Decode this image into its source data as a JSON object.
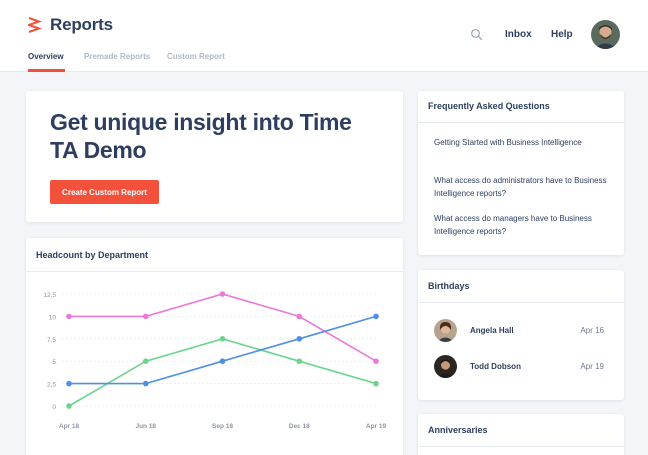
{
  "app": {
    "title": "Reports"
  },
  "tabs": [
    {
      "label": "Overview",
      "active": true
    },
    {
      "label": "Premade Reports",
      "active": false
    },
    {
      "label": "Custom Report",
      "active": false
    }
  ],
  "nav": {
    "search_icon": "search-icon",
    "inbox": "Inbox",
    "help": "Help",
    "avatar": "user-avatar"
  },
  "hero": {
    "title": "Get unique insight into Time TA Demo",
    "cta_label": "Create Custom Report"
  },
  "chart_card": {
    "title": "Headcount by Department"
  },
  "chart_data": {
    "type": "line",
    "title": "",
    "xlabel": "",
    "ylabel": "",
    "categories": [
      "Apr 18",
      "Jun 18",
      "Sep 18",
      "Dec 18",
      "Apr 19"
    ],
    "y_ticks": [
      "0",
      "2,5",
      "5",
      "7,5",
      "10",
      "12,5"
    ],
    "ylim": [
      0,
      12.5
    ],
    "grid": true,
    "series": [
      {
        "color": "#ea7ad8",
        "values": [
          10,
          10,
          12.5,
          10,
          5
        ]
      },
      {
        "color": "#6cd48c",
        "values": [
          0,
          5,
          7.5,
          5,
          2.5
        ]
      },
      {
        "color": "#4f8fe6",
        "values": [
          2.5,
          2.5,
          5,
          7.5,
          10
        ]
      }
    ]
  },
  "faq": {
    "title": "Frequently Asked Questions",
    "items": [
      "Getting Started with Business Intelligence",
      "What access do administrators have to Business Intelligence reports?",
      "What access do managers have to Business Intelligence reports?"
    ]
  },
  "birthdays": {
    "title": "Birthdays",
    "people": [
      {
        "name": "Angela Hall",
        "date": "Apr 16"
      },
      {
        "name": "Todd Dobson",
        "date": "Apr 19"
      }
    ]
  },
  "anniversaries": {
    "title": "Anniversaries"
  },
  "colors": {
    "accent": "#f4513d",
    "text": "#2d3e5f",
    "background": "#f3f5f8"
  }
}
